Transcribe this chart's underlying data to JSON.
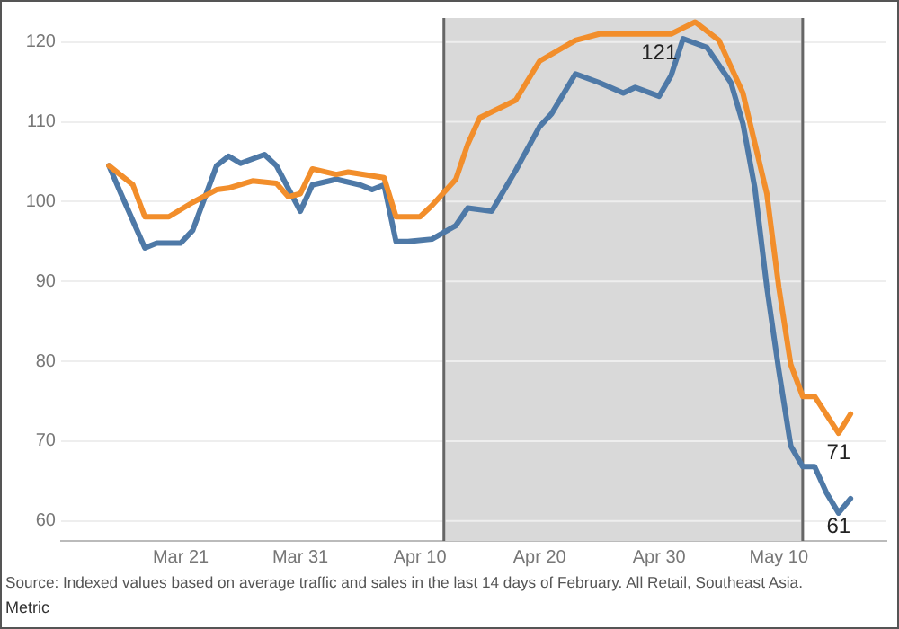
{
  "chart_data": {
    "type": "line",
    "xlim": [
      "--03-11",
      "--05-19"
    ],
    "xticks": [
      {
        "value": "--03-21",
        "label": "Mar 21"
      },
      {
        "value": "--03-31",
        "label": "Mar 31"
      },
      {
        "value": "--04-10",
        "label": "Apr 10"
      },
      {
        "value": "--04-20",
        "label": "Apr 20"
      },
      {
        "value": "--04-30",
        "label": "Apr 30"
      },
      {
        "value": "--05-10",
        "label": "May 10"
      }
    ],
    "ylim": [
      57.5,
      123
    ],
    "yticks": [
      60,
      70,
      80,
      90,
      100,
      110,
      120
    ],
    "grid": "y",
    "legend": false,
    "marker": "none",
    "line_style": "solid",
    "legend_title": "Metric",
    "bands": [
      {
        "axis": "x",
        "from": "--04-12",
        "to": "--05-12",
        "color": "#d9d9d9"
      }
    ],
    "ref_lines": [
      {
        "axis": "x",
        "value": "--04-12",
        "color": "#666666"
      },
      {
        "axis": "x",
        "value": "--05-12",
        "color": "#666666"
      }
    ],
    "annotations": [
      "Source: Indexed values based on average traffic and sales in the last 14 days of February. All Retail, Southeast Asia."
    ],
    "series": [
      {
        "color": "#f28e2b",
        "x": [
          "--03-15",
          "--03-17",
          "--03-18",
          "--03-20",
          "--03-22",
          "--03-24",
          "--03-25",
          "--03-27",
          "--03-29",
          "--03-30",
          "--03-31",
          "--04-01",
          "--04-03",
          "--04-04",
          "--04-07",
          "--04-08",
          "--04-10",
          "--04-11",
          "--04-13",
          "--04-14",
          "--04-15",
          "--04-18",
          "--04-20",
          "--04-23",
          "--04-25",
          "--04-30",
          "--05-01",
          "--05-03",
          "--05-05",
          "--05-07",
          "--05-09",
          "--05-10",
          "--05-11",
          "--05-12",
          "--05-13",
          "--05-15",
          "--05-16"
        ],
        "values": [
          104.5,
          102.1,
          98.1,
          98.1,
          99.9,
          101.5,
          101.7,
          102.6,
          102.3,
          100.6,
          101,
          104.1,
          103.4,
          103.7,
          103,
          98.1,
          98.1,
          99.5,
          102.8,
          107.2,
          110.5,
          112.7,
          117.6,
          120.2,
          121,
          121,
          121,
          122.5,
          120.2,
          113.6,
          101,
          89.3,
          79.6,
          75.6,
          75.6,
          71,
          73.4
        ],
        "value_labels": [
          null,
          null,
          null,
          null,
          null,
          null,
          null,
          null,
          null,
          null,
          null,
          null,
          null,
          null,
          null,
          null,
          null,
          null,
          null,
          null,
          null,
          null,
          null,
          null,
          null,
          "121",
          null,
          null,
          null,
          null,
          null,
          null,
          null,
          null,
          null,
          "71",
          null
        ]
      },
      {
        "color": "#4e79a7",
        "x": [
          "--03-15",
          "--03-16",
          "--03-18",
          "--03-19",
          "--03-21",
          "--03-22",
          "--03-24",
          "--03-25",
          "--03-26",
          "--03-28",
          "--03-29",
          "--03-31",
          "--04-01",
          "--04-03",
          "--04-05",
          "--04-06",
          "--04-07",
          "--04-08",
          "--04-09",
          "--04-11",
          "--04-13",
          "--04-14",
          "--04-16",
          "--04-18",
          "--04-20",
          "--04-21",
          "--04-23",
          "--04-25",
          "--04-27",
          "--04-28",
          "--04-30",
          "--05-01",
          "--05-02",
          "--05-04",
          "--05-06",
          "--05-07",
          "--05-08",
          "--05-09",
          "--05-10",
          "--05-11",
          "--05-12",
          "--05-13",
          "--05-14",
          "--05-15",
          "--05-16"
        ],
        "values": [
          104.5,
          101,
          94.2,
          94.8,
          94.8,
          96.4,
          104.5,
          105.7,
          104.8,
          105.9,
          104.5,
          98.8,
          102.1,
          102.8,
          102.1,
          101.5,
          102.1,
          95,
          95,
          95.3,
          97,
          99.2,
          98.8,
          103.9,
          109.4,
          111,
          116,
          114.9,
          113.6,
          114.3,
          113.2,
          115.8,
          120.4,
          119.3,
          114.9,
          109.8,
          101.7,
          89.3,
          78.9,
          69.4,
          66.8,
          66.8,
          63.5,
          61,
          62.8
        ],
        "value_labels": [
          null,
          null,
          null,
          null,
          null,
          null,
          null,
          null,
          null,
          null,
          null,
          null,
          null,
          null,
          null,
          null,
          null,
          null,
          null,
          null,
          null,
          null,
          null,
          null,
          null,
          null,
          null,
          null,
          null,
          null,
          null,
          null,
          null,
          null,
          null,
          null,
          null,
          null,
          null,
          null,
          null,
          null,
          null,
          "61",
          null
        ]
      }
    ]
  }
}
